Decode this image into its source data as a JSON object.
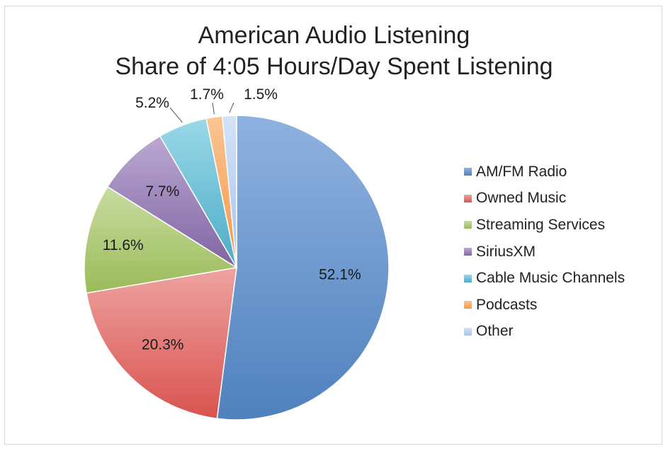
{
  "chart_data": {
    "type": "pie",
    "title": "American Audio Listening",
    "subtitle": "Share of 4:05 Hours/Day Spent Listening",
    "legend_position": "right",
    "slices": [
      {
        "label": "AM/FM Radio",
        "value": 52.1,
        "value_label": "52.1%",
        "color": "#4f81bd",
        "color_light": "#8fb2e0",
        "label_placement": "inside"
      },
      {
        "label": "Owned Music",
        "value": 20.3,
        "value_label": "20.3%",
        "color": "#d9534f",
        "color_light": "#eea3a1",
        "label_placement": "inside"
      },
      {
        "label": "Streaming Services",
        "value": 11.6,
        "value_label": "11.6%",
        "color": "#9bbb59",
        "color_light": "#c8dca2",
        "label_placement": "inside"
      },
      {
        "label": "SiriusXM",
        "value": 7.7,
        "value_label": "7.7%",
        "color": "#8064a2",
        "color_light": "#bba8d2",
        "label_placement": "inside"
      },
      {
        "label": "Cable Music Channels",
        "value": 5.2,
        "value_label": "5.2%",
        "color": "#4bacc6",
        "color_light": "#9ad8e8",
        "label_placement": "outside"
      },
      {
        "label": "Podcasts",
        "value": 1.7,
        "value_label": "1.7%",
        "color": "#f79646",
        "color_light": "#fbc594",
        "label_placement": "outside"
      },
      {
        "label": "Other",
        "value": 1.5,
        "value_label": "1.5%",
        "color": "#a6c3ec",
        "color_light": "#d4e3f7",
        "label_placement": "outside"
      }
    ]
  }
}
